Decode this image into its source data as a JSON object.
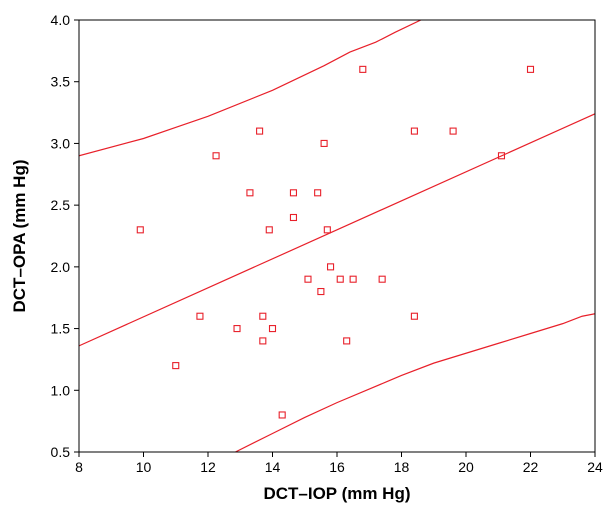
{
  "chart_data": {
    "type": "scatter",
    "xlabel": "DCT–IOP (mm Hg)",
    "ylabel": "DCT–OPA (mm Hg)",
    "xlim": [
      8,
      24
    ],
    "ylim": [
      0.5,
      4.0
    ],
    "x_ticks": [
      "8",
      "10",
      "12",
      "14",
      "16",
      "18",
      "20",
      "22",
      "24"
    ],
    "y_ticks": [
      "0.5",
      "1.0",
      "1.5",
      "2.0",
      "2.5",
      "3.0",
      "3.5",
      "4.0"
    ],
    "grid": false,
    "marker": "open-square",
    "color": "#e8202a",
    "points": [
      {
        "x": 9.9,
        "y": 2.3
      },
      {
        "x": 11.0,
        "y": 1.2
      },
      {
        "x": 11.75,
        "y": 1.6
      },
      {
        "x": 12.25,
        "y": 2.9
      },
      {
        "x": 12.9,
        "y": 1.5
      },
      {
        "x": 13.3,
        "y": 2.6
      },
      {
        "x": 13.6,
        "y": 3.1
      },
      {
        "x": 13.7,
        "y": 1.4
      },
      {
        "x": 13.7,
        "y": 1.6
      },
      {
        "x": 13.9,
        "y": 2.3
      },
      {
        "x": 14.0,
        "y": 1.5
      },
      {
        "x": 14.3,
        "y": 0.8
      },
      {
        "x": 14.65,
        "y": 2.6
      },
      {
        "x": 14.65,
        "y": 2.4
      },
      {
        "x": 15.1,
        "y": 1.9
      },
      {
        "x": 15.4,
        "y": 2.6
      },
      {
        "x": 15.5,
        "y": 1.8
      },
      {
        "x": 15.6,
        "y": 3.0
      },
      {
        "x": 15.7,
        "y": 2.3
      },
      {
        "x": 15.8,
        "y": 2.0
      },
      {
        "x": 16.1,
        "y": 1.9
      },
      {
        "x": 16.3,
        "y": 1.4
      },
      {
        "x": 16.5,
        "y": 1.9
      },
      {
        "x": 16.8,
        "y": 3.6
      },
      {
        "x": 17.4,
        "y": 1.9
      },
      {
        "x": 18.4,
        "y": 3.1
      },
      {
        "x": 18.4,
        "y": 1.6
      },
      {
        "x": 19.6,
        "y": 3.1
      },
      {
        "x": 21.1,
        "y": 2.9
      },
      {
        "x": 22.0,
        "y": 3.6
      }
    ],
    "regression_line": [
      {
        "x": 8,
        "y": 1.36
      },
      {
        "x": 24,
        "y": 3.24
      }
    ],
    "upper_band": [
      {
        "x": 8,
        "y": 2.9
      },
      {
        "x": 10,
        "y": 3.04
      },
      {
        "x": 12,
        "y": 3.22
      },
      {
        "x": 14,
        "y": 3.43
      },
      {
        "x": 15.6,
        "y": 3.63
      },
      {
        "x": 16.4,
        "y": 3.74
      },
      {
        "x": 17.2,
        "y": 3.82
      },
      {
        "x": 17.8,
        "y": 3.9
      },
      {
        "x": 18.6,
        "y": 4.0
      }
    ],
    "lower_band": [
      {
        "x": 12.85,
        "y": 0.5
      },
      {
        "x": 14,
        "y": 0.65
      },
      {
        "x": 15,
        "y": 0.78
      },
      {
        "x": 16,
        "y": 0.9
      },
      {
        "x": 17,
        "y": 1.01
      },
      {
        "x": 18,
        "y": 1.12
      },
      {
        "x": 19,
        "y": 1.22
      },
      {
        "x": 20,
        "y": 1.3
      },
      {
        "x": 21,
        "y": 1.38
      },
      {
        "x": 22,
        "y": 1.46
      },
      {
        "x": 23,
        "y": 1.54
      },
      {
        "x": 23.6,
        "y": 1.6
      },
      {
        "x": 24,
        "y": 1.62
      }
    ]
  }
}
